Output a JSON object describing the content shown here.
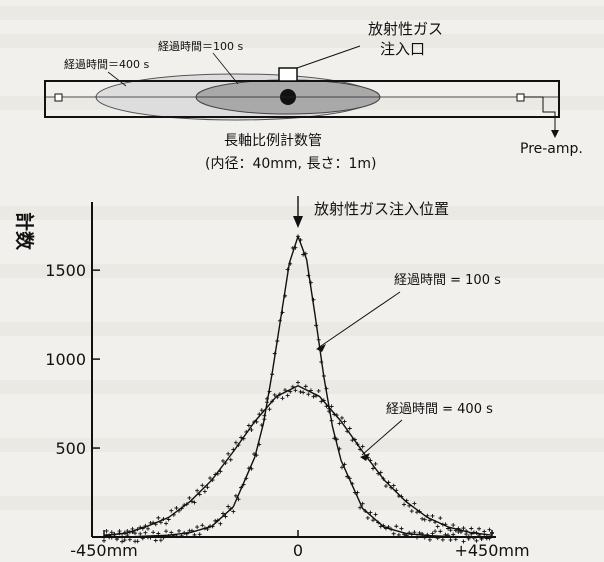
{
  "diagram": {
    "gas_inlet_label_line1": "放射性ガス",
    "gas_inlet_label_line2": "注入口",
    "time100_label": "経過時間＝100 s",
    "time400_label": "経過時間＝400 s",
    "preamp_label": "Pre-amp.",
    "caption_line1": "長軸比例計数管",
    "caption_line2": "(内径：40mm, 長さ：1m)"
  },
  "chart_data": {
    "type": "line",
    "title": "",
    "ylabel": "計数",
    "xlabel": "",
    "xlim": [
      -450,
      450
    ],
    "ylim": [
      0,
      1900
    ],
    "x_tick_labels": [
      "-450mm",
      "0",
      "+450mm"
    ],
    "y_ticks": [
      500,
      1000,
      1500
    ],
    "annotations": {
      "injection": "放射性ガス注入位置",
      "t100": "経過時間 = 100 s",
      "t400": "経過時間 = 400 s"
    },
    "series": [
      {
        "name": "経過時間 = 100 s",
        "x": [
          -450,
          -400,
          -350,
          -300,
          -250,
          -200,
          -150,
          -100,
          -80,
          -60,
          -40,
          -20,
          0,
          20,
          40,
          60,
          80,
          100,
          150,
          200,
          250,
          300,
          350,
          400,
          450
        ],
        "values": [
          0,
          0,
          5,
          10,
          25,
          60,
          170,
          450,
          640,
          920,
          1230,
          1540,
          1690,
          1560,
          1240,
          900,
          620,
          430,
          160,
          55,
          20,
          8,
          3,
          0,
          0
        ]
      },
      {
        "name": "経過時間 = 400 s",
        "x": [
          -450,
          -400,
          -350,
          -300,
          -250,
          -200,
          -150,
          -100,
          -50,
          0,
          50,
          100,
          150,
          200,
          250,
          300,
          350,
          400,
          450
        ],
        "values": [
          10,
          20,
          60,
          110,
          200,
          320,
          480,
          650,
          790,
          850,
          790,
          650,
          480,
          320,
          200,
          110,
          55,
          25,
          10
        ]
      }
    ]
  }
}
